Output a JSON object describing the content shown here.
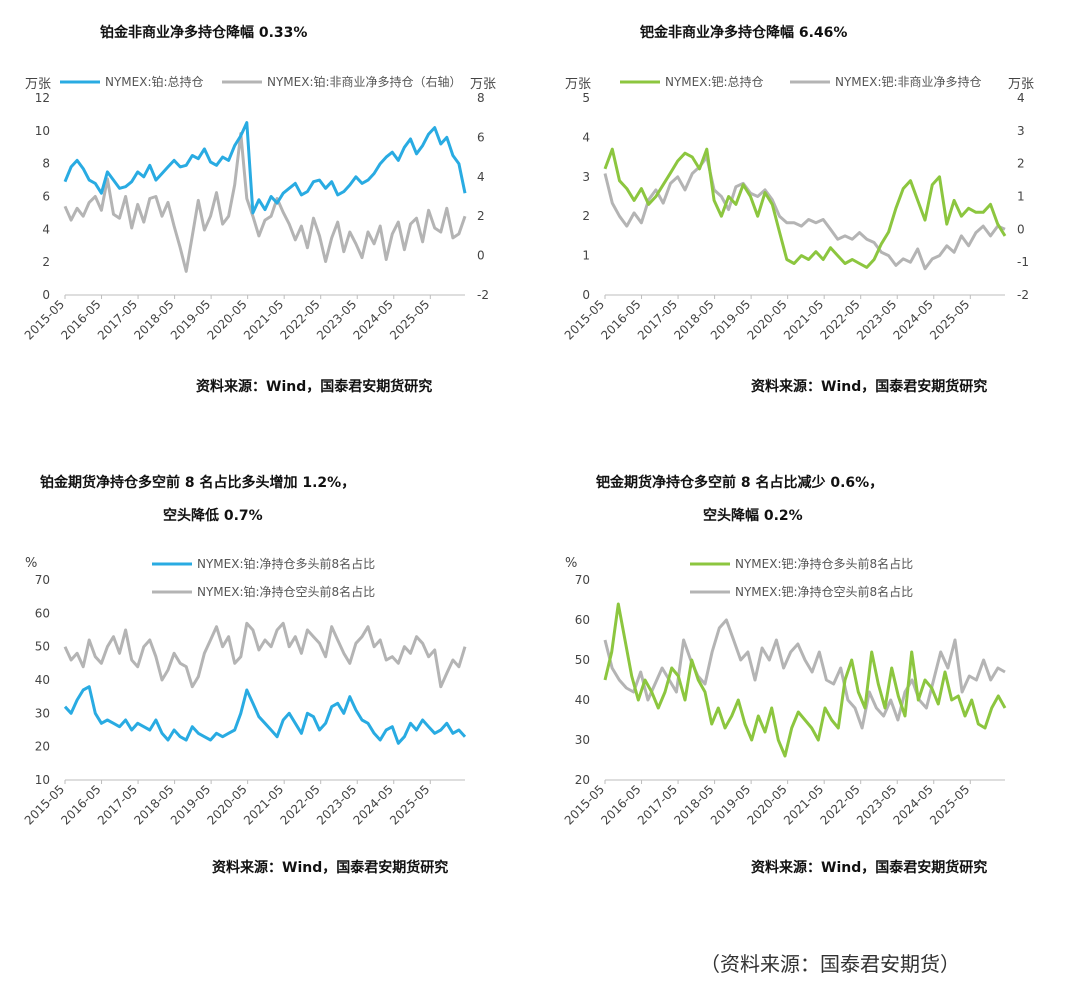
{
  "footer": "（资料来源：国泰君安期货）",
  "chart_data": [
    {
      "id": "pt_oi",
      "type": "line",
      "title": "铂金非商业净多持仓降幅 0.33%",
      "source": "资料来源：Wind，国泰君安期货研究",
      "left_unit": "万张",
      "right_unit": "万张",
      "x_ticks": [
        "2015-05",
        "2016-05",
        "2017-05",
        "2018-05",
        "2019-05",
        "2020-05",
        "2021-05",
        "2022-05",
        "2023-05",
        "2024-05",
        "2025-05"
      ],
      "ylim": [
        0,
        12
      ],
      "y_ticks": [
        0,
        2,
        4,
        6,
        8,
        10,
        12
      ],
      "y2lim": [
        -2,
        8
      ],
      "y2_ticks": [
        -2,
        0,
        2,
        4,
        6,
        8
      ],
      "series": [
        {
          "name": "NYMEX:铂:总持仓",
          "color": "#29abe2",
          "axis": "left",
          "values": [
            6.9,
            7.8,
            8.2,
            7.7,
            7.0,
            6.8,
            6.2,
            7.5,
            7.0,
            6.5,
            6.6,
            6.9,
            7.5,
            7.2,
            7.9,
            7.0,
            7.4,
            7.8,
            8.2,
            7.8,
            7.9,
            8.5,
            8.3,
            8.9,
            8.1,
            7.9,
            8.4,
            8.2,
            9.1,
            9.7,
            10.5,
            5.0,
            5.8,
            5.2,
            6.0,
            5.6,
            6.2,
            6.5,
            6.8,
            6.1,
            6.3,
            6.9,
            7.0,
            6.5,
            6.9,
            6.1,
            6.3,
            6.7,
            7.2,
            6.8,
            7.0,
            7.4,
            8.0,
            8.4,
            8.7,
            8.2,
            9.0,
            9.5,
            8.6,
            9.1,
            9.8,
            10.2,
            9.2,
            9.6,
            8.5,
            8.0,
            6.2
          ]
        },
        {
          "name": "NYMEX:铂:非商业净多持仓（右轴）",
          "color": "#b4b4b4",
          "axis": "right",
          "values": [
            2.5,
            1.8,
            2.4,
            2.0,
            2.7,
            3.0,
            2.3,
            3.9,
            2.1,
            1.9,
            3.0,
            1.4,
            2.6,
            1.7,
            2.9,
            3.0,
            2.0,
            2.7,
            1.5,
            0.4,
            -0.8,
            1.0,
            2.8,
            1.3,
            2.0,
            3.2,
            1.6,
            2.0,
            3.6,
            6.2,
            2.9,
            2.0,
            1.0,
            1.8,
            2.0,
            2.9,
            2.2,
            1.6,
            0.8,
            1.5,
            0.4,
            1.9,
            1.0,
            -0.3,
            0.9,
            1.7,
            0.2,
            1.2,
            0.6,
            -0.1,
            1.2,
            0.6,
            1.5,
            -0.2,
            1.1,
            1.7,
            0.3,
            1.6,
            1.9,
            0.7,
            2.3,
            1.4,
            1.2,
            2.4,
            0.9,
            1.1,
            2.0
          ]
        }
      ]
    },
    {
      "id": "pd_oi",
      "type": "line",
      "title": "钯金非商业净多持仓降幅 6.46%",
      "source": "资料来源：Wind，国泰君安期货研究",
      "left_unit": "万张",
      "right_unit": "万张",
      "x_ticks": [
        "2015-05",
        "2016-05",
        "2017-05",
        "2018-05",
        "2019-05",
        "2020-05",
        "2021-05",
        "2022-05",
        "2023-05",
        "2024-05",
        "2025-05"
      ],
      "ylim": [
        0,
        5
      ],
      "y_ticks": [
        0,
        1,
        2,
        3,
        4,
        5
      ],
      "y2lim": [
        -2,
        4
      ],
      "y2_ticks": [
        -2,
        -1,
        0,
        1,
        2,
        3,
        4
      ],
      "series": [
        {
          "name": "NYMEX:钯:总持仓",
          "color": "#8cc63f",
          "axis": "left",
          "values": [
            3.2,
            3.7,
            2.9,
            2.7,
            2.4,
            2.7,
            2.3,
            2.5,
            2.8,
            3.1,
            3.4,
            3.6,
            3.5,
            3.2,
            3.7,
            2.4,
            2.0,
            2.5,
            2.3,
            2.8,
            2.5,
            2.0,
            2.6,
            2.3,
            1.6,
            0.9,
            0.8,
            1.0,
            0.9,
            1.1,
            0.9,
            1.2,
            1.0,
            0.8,
            0.9,
            0.8,
            0.7,
            0.9,
            1.3,
            1.6,
            2.2,
            2.7,
            2.9,
            2.4,
            1.9,
            2.8,
            3.0,
            1.8,
            2.4,
            2.0,
            2.2,
            2.1,
            2.1,
            2.3,
            1.8,
            1.5
          ]
        },
        {
          "name": "NYMEX:钯:非商业净多持仓",
          "color": "#b4b4b4",
          "axis": "right",
          "values": [
            1.7,
            0.8,
            0.4,
            0.1,
            0.5,
            0.2,
            0.9,
            1.2,
            0.8,
            1.4,
            1.6,
            1.2,
            1.7,
            1.9,
            2.2,
            1.2,
            1.0,
            0.6,
            1.3,
            1.4,
            1.1,
            1.0,
            1.2,
            0.9,
            0.4,
            0.2,
            0.2,
            0.1,
            0.3,
            0.2,
            0.3,
            0.0,
            -0.3,
            -0.2,
            -0.3,
            -0.1,
            -0.3,
            -0.4,
            -0.7,
            -0.8,
            -1.1,
            -0.9,
            -1.0,
            -0.6,
            -1.2,
            -0.9,
            -0.8,
            -0.5,
            -0.7,
            -0.2,
            -0.5,
            -0.1,
            0.1,
            -0.2,
            0.1,
            0.0
          ]
        }
      ]
    },
    {
      "id": "pt_top8",
      "type": "line",
      "title_lines": [
        "铂金期货净持仓多空前 8 名占比多头增加 1.2%，",
        "空头降低 0.7%"
      ],
      "source": "资料来源：Wind，国泰君安期货研究",
      "left_unit": "%",
      "x_ticks": [
        "2015-05",
        "2016-05",
        "2017-05",
        "2018-05",
        "2019-05",
        "2020-05",
        "2021-05",
        "2022-05",
        "2023-05",
        "2024-05",
        "2025-05"
      ],
      "ylim": [
        10,
        70
      ],
      "y_ticks": [
        10,
        20,
        30,
        40,
        50,
        60,
        70
      ],
      "series": [
        {
          "name": "NYMEX:铂:净持仓多头前8名占比",
          "color": "#29abe2",
          "axis": "left",
          "values": [
            32,
            30,
            34,
            37,
            38,
            30,
            27,
            28,
            27,
            26,
            28,
            25,
            27,
            26,
            25,
            28,
            24,
            22,
            25,
            23,
            22,
            26,
            24,
            23,
            22,
            24,
            23,
            24,
            25,
            30,
            37,
            33,
            29,
            27,
            25,
            23,
            28,
            30,
            27,
            24,
            30,
            29,
            25,
            27,
            32,
            33,
            30,
            35,
            31,
            28,
            27,
            24,
            22,
            25,
            26,
            21,
            23,
            27,
            25,
            28,
            26,
            24,
            25,
            27,
            24,
            25,
            23
          ]
        },
        {
          "name": "NYMEX:铂:净持仓空头前8名占比",
          "color": "#b4b4b4",
          "axis": "left",
          "values": [
            50,
            46,
            48,
            44,
            52,
            47,
            45,
            50,
            53,
            48,
            55,
            46,
            44,
            50,
            52,
            47,
            40,
            43,
            48,
            45,
            44,
            38,
            41,
            48,
            52,
            56,
            50,
            53,
            45,
            47,
            57,
            55,
            49,
            52,
            50,
            55,
            57,
            50,
            53,
            48,
            55,
            53,
            51,
            47,
            56,
            52,
            48,
            45,
            51,
            53,
            56,
            50,
            52,
            46,
            47,
            45,
            50,
            48,
            53,
            51,
            47,
            49,
            38,
            42,
            46,
            44,
            50
          ]
        }
      ]
    },
    {
      "id": "pd_top8",
      "type": "line",
      "title_lines": [
        "钯金期货净持仓多空前 8 名占比减少 0.6%，",
        "空头降幅 0.2%"
      ],
      "source": "资料来源：Wind，国泰君安期货研究",
      "left_unit": "%",
      "x_ticks": [
        "2015-05",
        "2016-05",
        "2017-05",
        "2018-05",
        "2019-05",
        "2020-05",
        "2021-05",
        "2022-05",
        "2023-05",
        "2024-05",
        "2025-05"
      ],
      "ylim": [
        20,
        70
      ],
      "y_ticks": [
        20,
        30,
        40,
        50,
        60,
        70
      ],
      "series": [
        {
          "name": "NYMEX:钯:净持仓多头前8名占比",
          "color": "#8cc63f",
          "axis": "left",
          "values": [
            45,
            52,
            64,
            55,
            46,
            40,
            45,
            42,
            38,
            42,
            48,
            46,
            40,
            50,
            45,
            42,
            34,
            38,
            33,
            36,
            40,
            34,
            30,
            36,
            32,
            38,
            30,
            26,
            33,
            37,
            35,
            33,
            30,
            38,
            35,
            33,
            45,
            50,
            42,
            38,
            52,
            44,
            38,
            48,
            41,
            36,
            52,
            40,
            45,
            43,
            39,
            47,
            40,
            41,
            36,
            40,
            34,
            33,
            38,
            41,
            38
          ]
        },
        {
          "name": "NYMEX:钯:净持仓空头前8名占比",
          "color": "#b4b4b4",
          "axis": "left",
          "values": [
            55,
            48,
            45,
            43,
            42,
            47,
            40,
            44,
            48,
            45,
            42,
            55,
            50,
            46,
            44,
            52,
            58,
            60,
            55,
            50,
            52,
            45,
            53,
            50,
            55,
            48,
            52,
            54,
            50,
            47,
            52,
            45,
            44,
            48,
            40,
            38,
            33,
            42,
            38,
            36,
            40,
            35,
            42,
            45,
            40,
            38,
            45,
            52,
            48,
            55,
            42,
            46,
            45,
            50,
            45,
            48,
            47
          ]
        }
      ]
    }
  ]
}
